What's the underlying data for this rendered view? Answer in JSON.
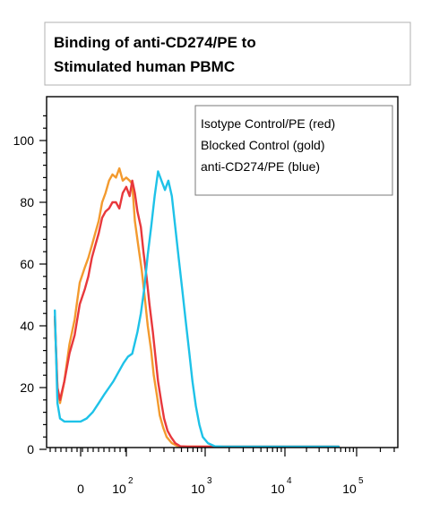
{
  "chart_data": {
    "type": "line",
    "title_lines": [
      "Binding of anti-CD274/PE to",
      "Stimulated human PBMC"
    ],
    "xlabel": "",
    "ylabel": "",
    "x_scale": "biexponential",
    "x_tick_labels": [
      {
        "base": "0",
        "exp": ""
      },
      {
        "base": "10",
        "exp": "2"
      },
      {
        "base": "10",
        "exp": "3"
      },
      {
        "base": "10",
        "exp": "4"
      },
      {
        "base": "10",
        "exp": "5"
      }
    ],
    "ylim": [
      0,
      110
    ],
    "y_ticks": [
      0,
      20,
      40,
      60,
      80,
      100
    ],
    "grid": false,
    "legend_position": "top-right",
    "legend": [
      "Isotype Control/PE (red)",
      "Blocked Control (gold)",
      "anti-CD274/PE (blue)"
    ],
    "series": [
      {
        "name": "Isotype Control/PE (red)",
        "color": "#e8383c",
        "points": [
          [
            -30,
            43
          ],
          [
            -27,
            20
          ],
          [
            -24,
            16
          ],
          [
            -19,
            22
          ],
          [
            -13,
            31
          ],
          [
            -7,
            37
          ],
          [
            -1,
            47
          ],
          [
            5,
            52
          ],
          [
            9,
            56
          ],
          [
            13,
            62
          ],
          [
            17,
            66
          ],
          [
            21,
            70
          ],
          [
            25,
            75
          ],
          [
            29,
            77
          ],
          [
            33,
            78
          ],
          [
            37,
            80
          ],
          [
            41,
            80
          ],
          [
            45,
            78
          ],
          [
            49,
            83
          ],
          [
            53,
            85
          ],
          [
            57,
            82
          ],
          [
            60,
            87
          ],
          [
            63,
            83
          ],
          [
            66,
            77
          ],
          [
            70,
            72
          ],
          [
            73,
            64
          ],
          [
            77,
            55
          ],
          [
            80,
            47
          ],
          [
            84,
            38
          ],
          [
            87,
            30
          ],
          [
            90,
            22
          ],
          [
            94,
            15
          ],
          [
            97,
            10
          ],
          [
            101,
            6
          ],
          [
            105,
            4
          ],
          [
            110,
            2
          ],
          [
            116,
            1
          ],
          [
            124,
            0.5
          ],
          [
            134,
            0
          ],
          [
            300,
            0
          ]
        ]
      },
      {
        "name": "Blocked Control (gold)",
        "color": "#f39a2e",
        "points": [
          [
            -30,
            42
          ],
          [
            -27,
            20
          ],
          [
            -24,
            15
          ],
          [
            -19,
            22
          ],
          [
            -13,
            34
          ],
          [
            -7,
            42
          ],
          [
            -1,
            54
          ],
          [
            5,
            59
          ],
          [
            9,
            62
          ],
          [
            13,
            66
          ],
          [
            17,
            70
          ],
          [
            21,
            74
          ],
          [
            25,
            80
          ],
          [
            29,
            83
          ],
          [
            33,
            87
          ],
          [
            37,
            89
          ],
          [
            41,
            88
          ],
          [
            45,
            91
          ],
          [
            49,
            87
          ],
          [
            53,
            88
          ],
          [
            57,
            87
          ],
          [
            60,
            86
          ],
          [
            63,
            74
          ],
          [
            67,
            66
          ],
          [
            71,
            58
          ],
          [
            75,
            48
          ],
          [
            78,
            40
          ],
          [
            82,
            32
          ],
          [
            85,
            24
          ],
          [
            89,
            17
          ],
          [
            92,
            11
          ],
          [
            96,
            7
          ],
          [
            100,
            4
          ],
          [
            106,
            2
          ],
          [
            113,
            1
          ],
          [
            120,
            0.5
          ],
          [
            130,
            0
          ],
          [
            300,
            0
          ]
        ]
      },
      {
        "name": "anti-CD274/PE (blue)",
        "color": "#1ec2e8",
        "points": [
          [
            -30,
            45
          ],
          [
            -27,
            15
          ],
          [
            -24,
            10
          ],
          [
            -19,
            9
          ],
          [
            -10,
            9
          ],
          [
            0,
            9
          ],
          [
            7,
            10
          ],
          [
            14,
            12
          ],
          [
            21,
            15
          ],
          [
            28,
            18
          ],
          [
            33,
            20
          ],
          [
            38,
            22
          ],
          [
            44,
            25
          ],
          [
            50,
            28
          ],
          [
            55,
            30
          ],
          [
            60,
            31
          ],
          [
            66,
            38
          ],
          [
            70,
            44
          ],
          [
            74,
            52
          ],
          [
            78,
            63
          ],
          [
            82,
            72
          ],
          [
            86,
            82
          ],
          [
            90,
            90
          ],
          [
            94,
            87
          ],
          [
            98,
            84
          ],
          [
            102,
            87
          ],
          [
            106,
            82
          ],
          [
            110,
            72
          ],
          [
            114,
            62
          ],
          [
            118,
            52
          ],
          [
            122,
            42
          ],
          [
            126,
            32
          ],
          [
            130,
            22
          ],
          [
            134,
            14
          ],
          [
            138,
            8
          ],
          [
            142,
            4
          ],
          [
            148,
            2
          ],
          [
            156,
            1
          ],
          [
            166,
            0.5
          ],
          [
            180,
            0
          ],
          [
            300,
            0
          ]
        ]
      }
    ]
  }
}
